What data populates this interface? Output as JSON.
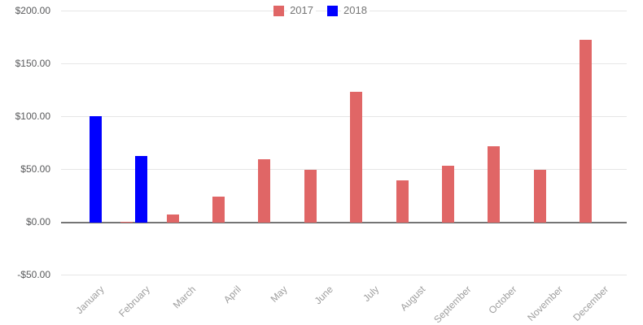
{
  "chart_data": {
    "type": "bar",
    "title": "",
    "categories": [
      "January",
      "February",
      "March",
      "April",
      "May",
      "June",
      "July",
      "August",
      "September",
      "October",
      "November",
      "December"
    ],
    "series": [
      {
        "name": "2017",
        "color": "#e06666",
        "values": [
          0,
          1,
          8,
          25,
          60,
          50,
          124,
          40,
          54,
          72,
          50,
          173
        ]
      },
      {
        "name": "2018",
        "color": "#0000ff",
        "values": [
          101,
          63,
          null,
          null,
          null,
          null,
          null,
          null,
          null,
          null,
          null,
          null
        ]
      }
    ],
    "y_axis": {
      "min": -50,
      "max": 200,
      "step": 50,
      "tick_labels": [
        "$200.00",
        "$150.00",
        "$100.00",
        "$50.00",
        "$0.00",
        "-$50.00"
      ]
    },
    "grid": true,
    "legend_position": "top"
  },
  "colors": {
    "background": "#ffffff",
    "grid_line": "#e6e6e6",
    "zero_line": "#757575",
    "y_label_text": "#58595b",
    "x_label_text": "#9e9e9e",
    "legend_text": "#757575",
    "series_2017": "#e06666",
    "series_2018": "#0000ff"
  }
}
